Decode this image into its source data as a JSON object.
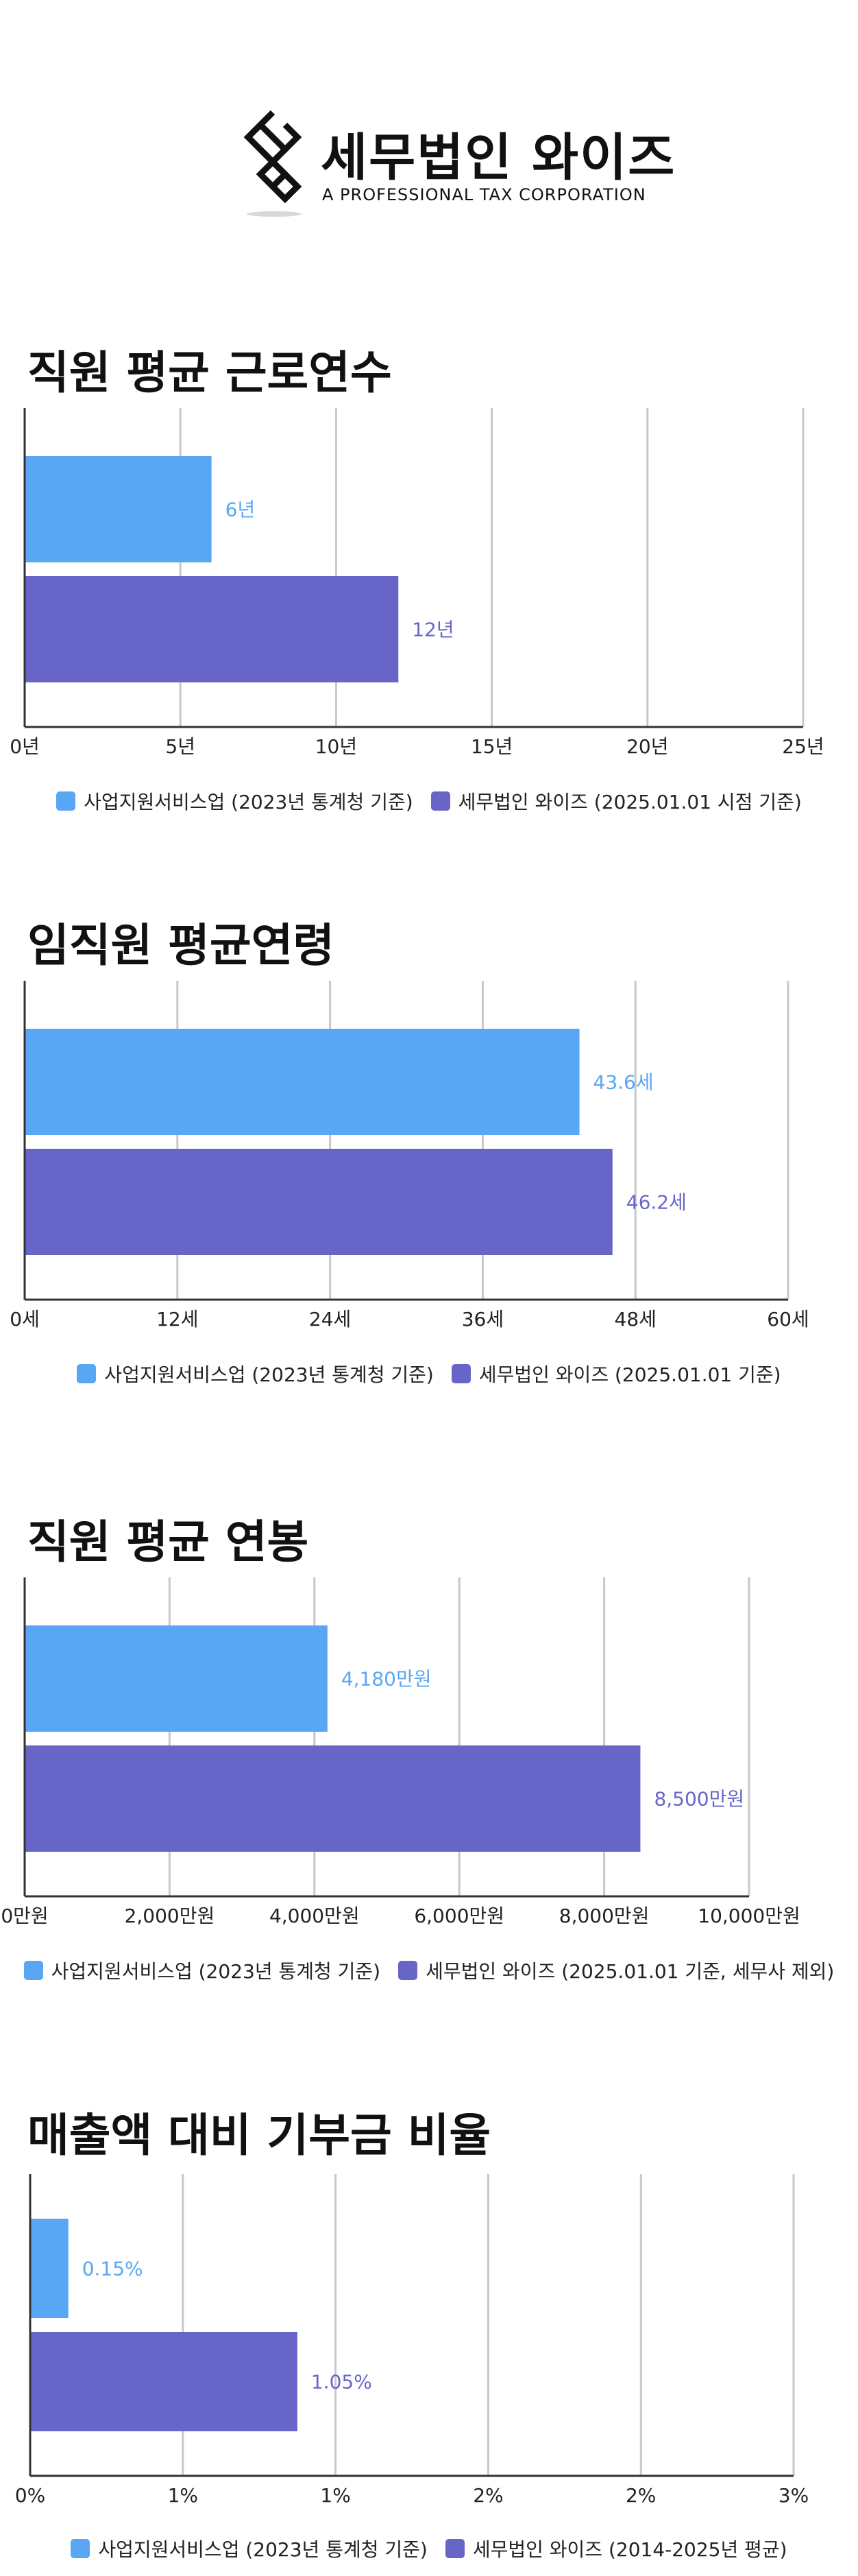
{
  "brand": {
    "name": "세무법인 와이즈",
    "tagline": "A PROFESSIONAL TAX CORPORATION"
  },
  "colors": {
    "series1": "#58a6f4",
    "series2": "#6865c8",
    "grid": "#c8c8c8",
    "axis": "#333333"
  },
  "chart_data": [
    {
      "type": "bar",
      "orientation": "horizontal",
      "title": "직원 평균 근로연수",
      "series": [
        {
          "name": "사업지원서비스업 (2023년 통계청 기준)",
          "value": 6,
          "label": "6년"
        },
        {
          "name": "세무법인 와이즈 (2025.01.01 시점 기준)",
          "value": 12,
          "label": "12년"
        }
      ],
      "xlim": [
        0,
        25
      ],
      "ticks": [
        0,
        5,
        10,
        15,
        20,
        25
      ],
      "tick_labels": [
        "0년",
        "5년",
        "10년",
        "15년",
        "20년",
        "25년"
      ],
      "grid": true,
      "legend": "bottom"
    },
    {
      "type": "bar",
      "orientation": "horizontal",
      "title": "임직원 평균연령",
      "series": [
        {
          "name": "사업지원서비스업 (2023년 통계청 기준)",
          "value": 43.6,
          "label": "43.6세"
        },
        {
          "name": "세무법인 와이즈 (2025.01.01 기준)",
          "value": 46.2,
          "label": "46.2세"
        }
      ],
      "xlim": [
        0,
        60
      ],
      "ticks": [
        0,
        12,
        24,
        36,
        48,
        60
      ],
      "tick_labels": [
        "0세",
        "12세",
        "24세",
        "36세",
        "48세",
        "60세"
      ],
      "grid": true,
      "legend": "bottom"
    },
    {
      "type": "bar",
      "orientation": "horizontal",
      "title": "직원 평균 연봉",
      "series": [
        {
          "name": "사업지원서비스업 (2023년 통계청 기준)",
          "value": 4180,
          "label": "4,180만원"
        },
        {
          "name": "세무법인 와이즈 (2025.01.01 기준, 세무사 제외)",
          "value": 8500,
          "label": "8,500만원"
        }
      ],
      "xlim": [
        0,
        10000
      ],
      "ticks": [
        0,
        2000,
        4000,
        6000,
        8000,
        10000
      ],
      "tick_labels": [
        "0만원",
        "2,000만원",
        "4,000만원",
        "6,000만원",
        "8,000만원",
        "10,000만원"
      ],
      "grid": true,
      "legend": "bottom"
    },
    {
      "type": "bar",
      "orientation": "horizontal",
      "title": "매출액 대비 기부금 비율",
      "series": [
        {
          "name": "사업지원서비스업 (2023년 통계청 기준)",
          "value": 0.15,
          "label": "0.15%"
        },
        {
          "name": "세무법인 와이즈 (2014-2025년 평균)",
          "value": 1.05,
          "label": "1.05%"
        }
      ],
      "xlim": [
        0,
        3
      ],
      "ticks": [
        0,
        0.6,
        1.2,
        1.8,
        2.4,
        3
      ],
      "tick_labels": [
        "0%",
        "1%",
        "1%",
        "2%",
        "2%",
        "3%"
      ],
      "grid": true,
      "legend": "bottom"
    }
  ]
}
